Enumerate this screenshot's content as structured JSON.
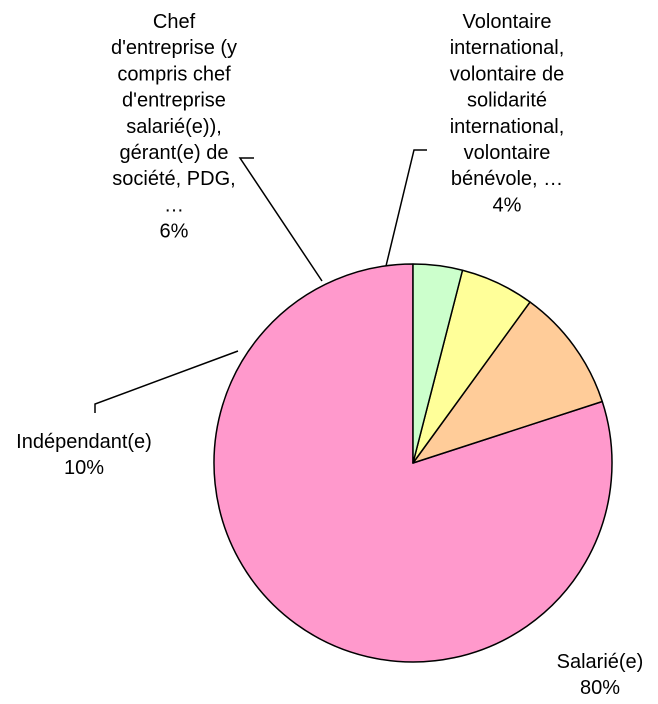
{
  "chart_data": {
    "type": "pie",
    "legend": "none",
    "slices": [
      {
        "name": "Salarié(e)",
        "label_lines": [
          "Salarié(e)"
        ],
        "value_label": "80%",
        "value": 80,
        "color": "#FF99CC"
      },
      {
        "name": "Indépendant(e)",
        "label_lines": [
          "Indépendant(e)"
        ],
        "value_label": "10%",
        "value": 10,
        "color": "#FFCC99"
      },
      {
        "name": "Chef d'entreprise (y compris chef d'entreprise salarié(e)), gérant(e) de société, PDG, …",
        "label_lines": [
          "Chef",
          "d'entreprise (y",
          "compris chef",
          "d'entreprise",
          "salarié(e)),",
          "gérant(e) de",
          "société, PDG,",
          "…"
        ],
        "value_label": "6%",
        "value": 6,
        "color": "#FFFF99"
      },
      {
        "name": "Volontaire international, volontaire de solidarité international, volontaire bénévole, …",
        "label_lines": [
          "Volontaire",
          "international,",
          "volontaire de",
          "solidarité",
          "international,",
          "volontaire",
          "bénévole, …"
        ],
        "value_label": "4%",
        "value": 4,
        "color": "#CCFFCC"
      }
    ]
  }
}
